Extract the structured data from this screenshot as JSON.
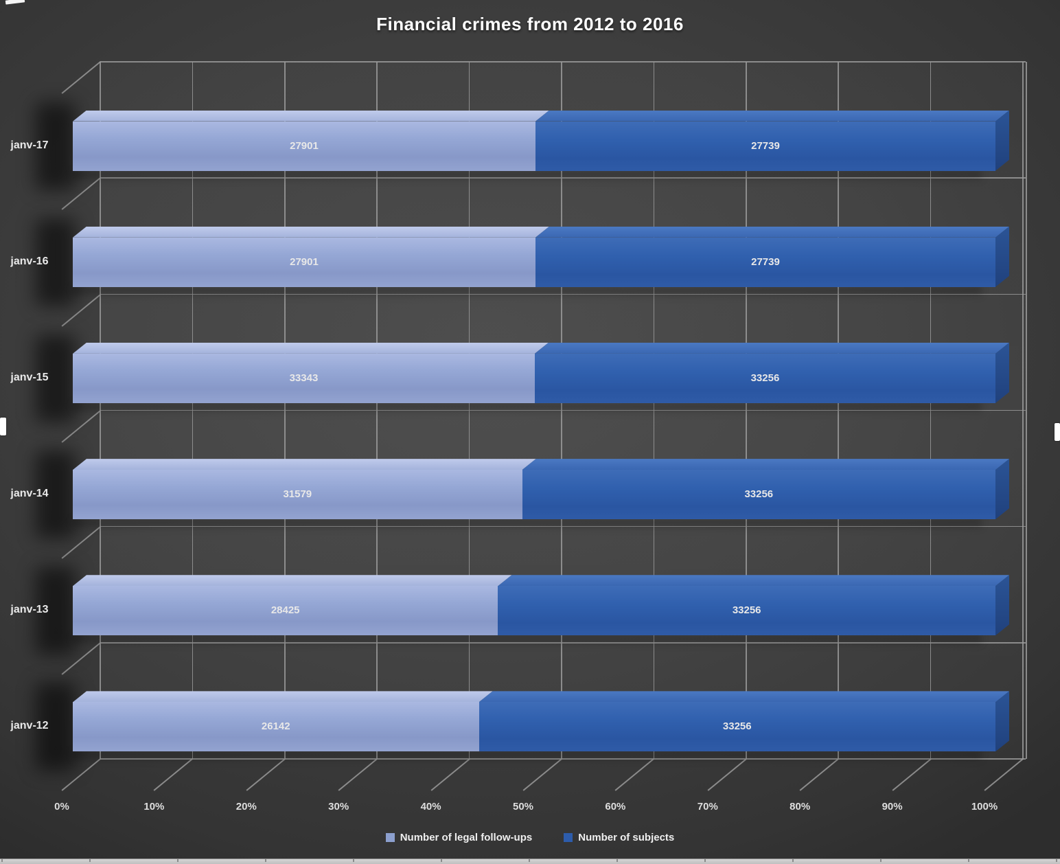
{
  "chart_data": {
    "type": "bar",
    "variant": "3d-horizontal-100pct-stacked",
    "title": "Financial crimes from 2012 to 2016",
    "categories": [
      "janv-17",
      "janv-16",
      "janv-15",
      "janv-14",
      "janv-13",
      "janv-12"
    ],
    "series": [
      {
        "name": "Number of legal follow-ups",
        "color": "#8c9fce",
        "values": [
          27901,
          27901,
          33343,
          31579,
          28425,
          26142
        ]
      },
      {
        "name": "Number of subjects",
        "color": "#2d5cab",
        "values": [
          27739,
          27739,
          33256,
          33256,
          33256,
          33256
        ]
      }
    ],
    "x_ticks": [
      "0%",
      "10%",
      "20%",
      "30%",
      "40%",
      "50%",
      "60%",
      "70%",
      "80%",
      "90%",
      "100%"
    ],
    "xlim": [
      0,
      1
    ],
    "grid": true,
    "legend_position": "bottom",
    "data_labels": true,
    "background": "#3e3e3e",
    "gridline_color": "#9a9a9a"
  }
}
